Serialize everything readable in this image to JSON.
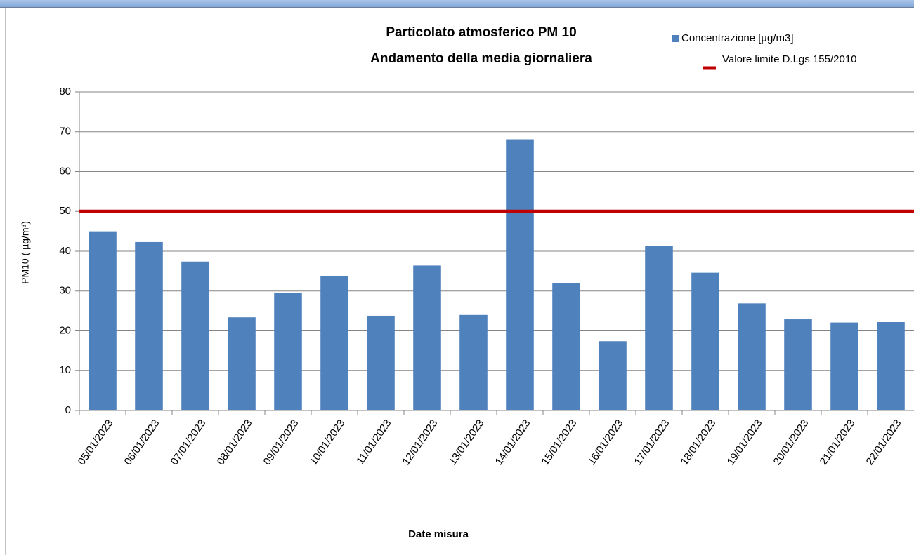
{
  "chart_data": {
    "type": "bar",
    "title": [
      "Particolato atmosferico PM 10",
      "Andamento della media giornaliera"
    ],
    "y_label": "PM10 ( µg/m³)",
    "x_label": "Date misura",
    "categories": [
      "05/01/2023",
      "06/01/2023",
      "07/01/2023",
      "08/01/2023",
      "09/01/2023",
      "10/01/2023",
      "11/01/2023",
      "12/01/2023",
      "13/01/2023",
      "14/01/2023",
      "15/01/2023",
      "16/01/2023",
      "17/01/2023",
      "18/01/2023",
      "19/01/2023",
      "20/01/2023",
      "21/01/2023",
      "22/01/2023"
    ],
    "series": [
      {
        "name": "Concentrazione [µg/m3]",
        "color": "#4f81bd",
        "values": [
          45,
          42.3,
          37.4,
          23.4,
          29.6,
          33.8,
          23.8,
          36.4,
          24,
          68.1,
          32,
          17.4,
          41.4,
          34.6,
          26.9,
          22.9,
          22.1,
          22.2
        ]
      }
    ],
    "limit": {
      "name": "Valore limite D.Lgs 155/2010",
      "color": "#c00000",
      "value": 50
    },
    "ylim": [
      0,
      80
    ],
    "yticks": [
      0,
      10,
      20,
      30,
      40,
      50,
      60,
      70,
      80
    ],
    "grid": true
  }
}
